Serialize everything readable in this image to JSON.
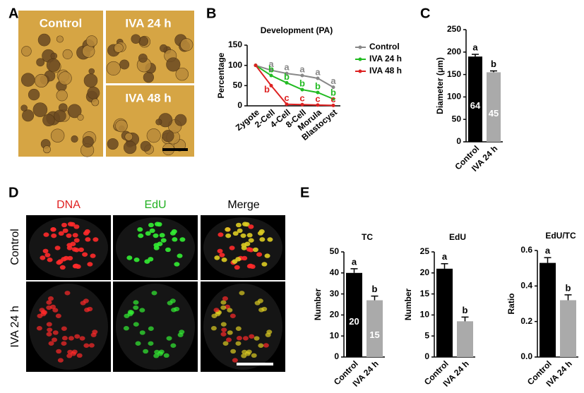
{
  "panel_labels": [
    "A",
    "B",
    "C",
    "D",
    "E"
  ],
  "panel_A": {
    "images": [
      "Control",
      "IVA 24 h",
      "IVA 48 h"
    ]
  },
  "panel_D": {
    "columns": [
      "DNA",
      "EdU",
      "Merge"
    ],
    "rows": [
      "Control",
      "IVA 24 h"
    ]
  },
  "chart_data": [
    {
      "type": "line",
      "title": "Development (PA)",
      "y_label": "Percentage",
      "categories": [
        "Zygote",
        "2-Cell",
        "4-Cell",
        "8-Cell",
        "Morula",
        "Blastocyst"
      ],
      "ylim": [
        0,
        150
      ],
      "yticks": [
        0,
        50,
        100,
        150
      ],
      "series": [
        {
          "name": "Control",
          "color": "#888888",
          "values": [
            100,
            88,
            80,
            75,
            68,
            46
          ],
          "letters": [
            null,
            "a",
            "a",
            "a",
            "a",
            "a"
          ]
        },
        {
          "name": "IVA 24 h",
          "color": "#22bb22",
          "values": [
            100,
            75,
            57,
            40,
            33,
            17
          ],
          "letters": [
            null,
            "b",
            "b",
            "b",
            "b",
            "b"
          ]
        },
        {
          "name": "IVA 48 h",
          "color": "#dd2222",
          "values": [
            100,
            50,
            4,
            3,
            2,
            1
          ],
          "letters": [
            null,
            "b",
            "c",
            "c",
            "c",
            "c"
          ]
        }
      ]
    },
    {
      "type": "bar",
      "y_label": "Diameter (μm)",
      "categories": [
        "Control",
        "IVA 24 h"
      ],
      "values": [
        190,
        155
      ],
      "errors": [
        5,
        3
      ],
      "colors": [
        "#000000",
        "#aaaaaa"
      ],
      "letters": [
        "a",
        "b"
      ],
      "inner_labels": [
        "64",
        "45"
      ],
      "ylim": [
        0,
        250
      ],
      "yticks": [
        0,
        50,
        100,
        150,
        200,
        250
      ]
    },
    {
      "type": "bar",
      "title": "TC",
      "y_label": "Number",
      "categories": [
        "Control",
        "IVA 24 h"
      ],
      "values": [
        40,
        27
      ],
      "errors": [
        2,
        2
      ],
      "colors": [
        "#000000",
        "#aaaaaa"
      ],
      "letters": [
        "a",
        "b"
      ],
      "inner_labels": [
        "20",
        "15"
      ],
      "ylim": [
        0,
        50
      ],
      "yticks": [
        0,
        10,
        20,
        30,
        40,
        50
      ]
    },
    {
      "type": "bar",
      "title": "EdU",
      "y_label": "Number",
      "categories": [
        "Control",
        "IVA 24 h"
      ],
      "values": [
        21,
        8.5
      ],
      "errors": [
        1.2,
        1
      ],
      "colors": [
        "#000000",
        "#aaaaaa"
      ],
      "letters": [
        "a",
        "b"
      ],
      "ylim": [
        0,
        25
      ],
      "yticks": [
        0,
        5,
        10,
        15,
        20,
        25
      ]
    },
    {
      "type": "bar",
      "title": "EdU/TC",
      "y_label": "Ratio",
      "categories": [
        "Control",
        "IVA 24 h"
      ],
      "values": [
        0.53,
        0.32
      ],
      "errors": [
        0.03,
        0.03
      ],
      "colors": [
        "#000000",
        "#aaaaaa"
      ],
      "letters": [
        "a",
        "b"
      ],
      "ylim": [
        0,
        0.6
      ],
      "yticks": [
        {
          "value": 0,
          "label": "0.0"
        },
        0.2,
        0.4,
        0.6
      ]
    }
  ]
}
